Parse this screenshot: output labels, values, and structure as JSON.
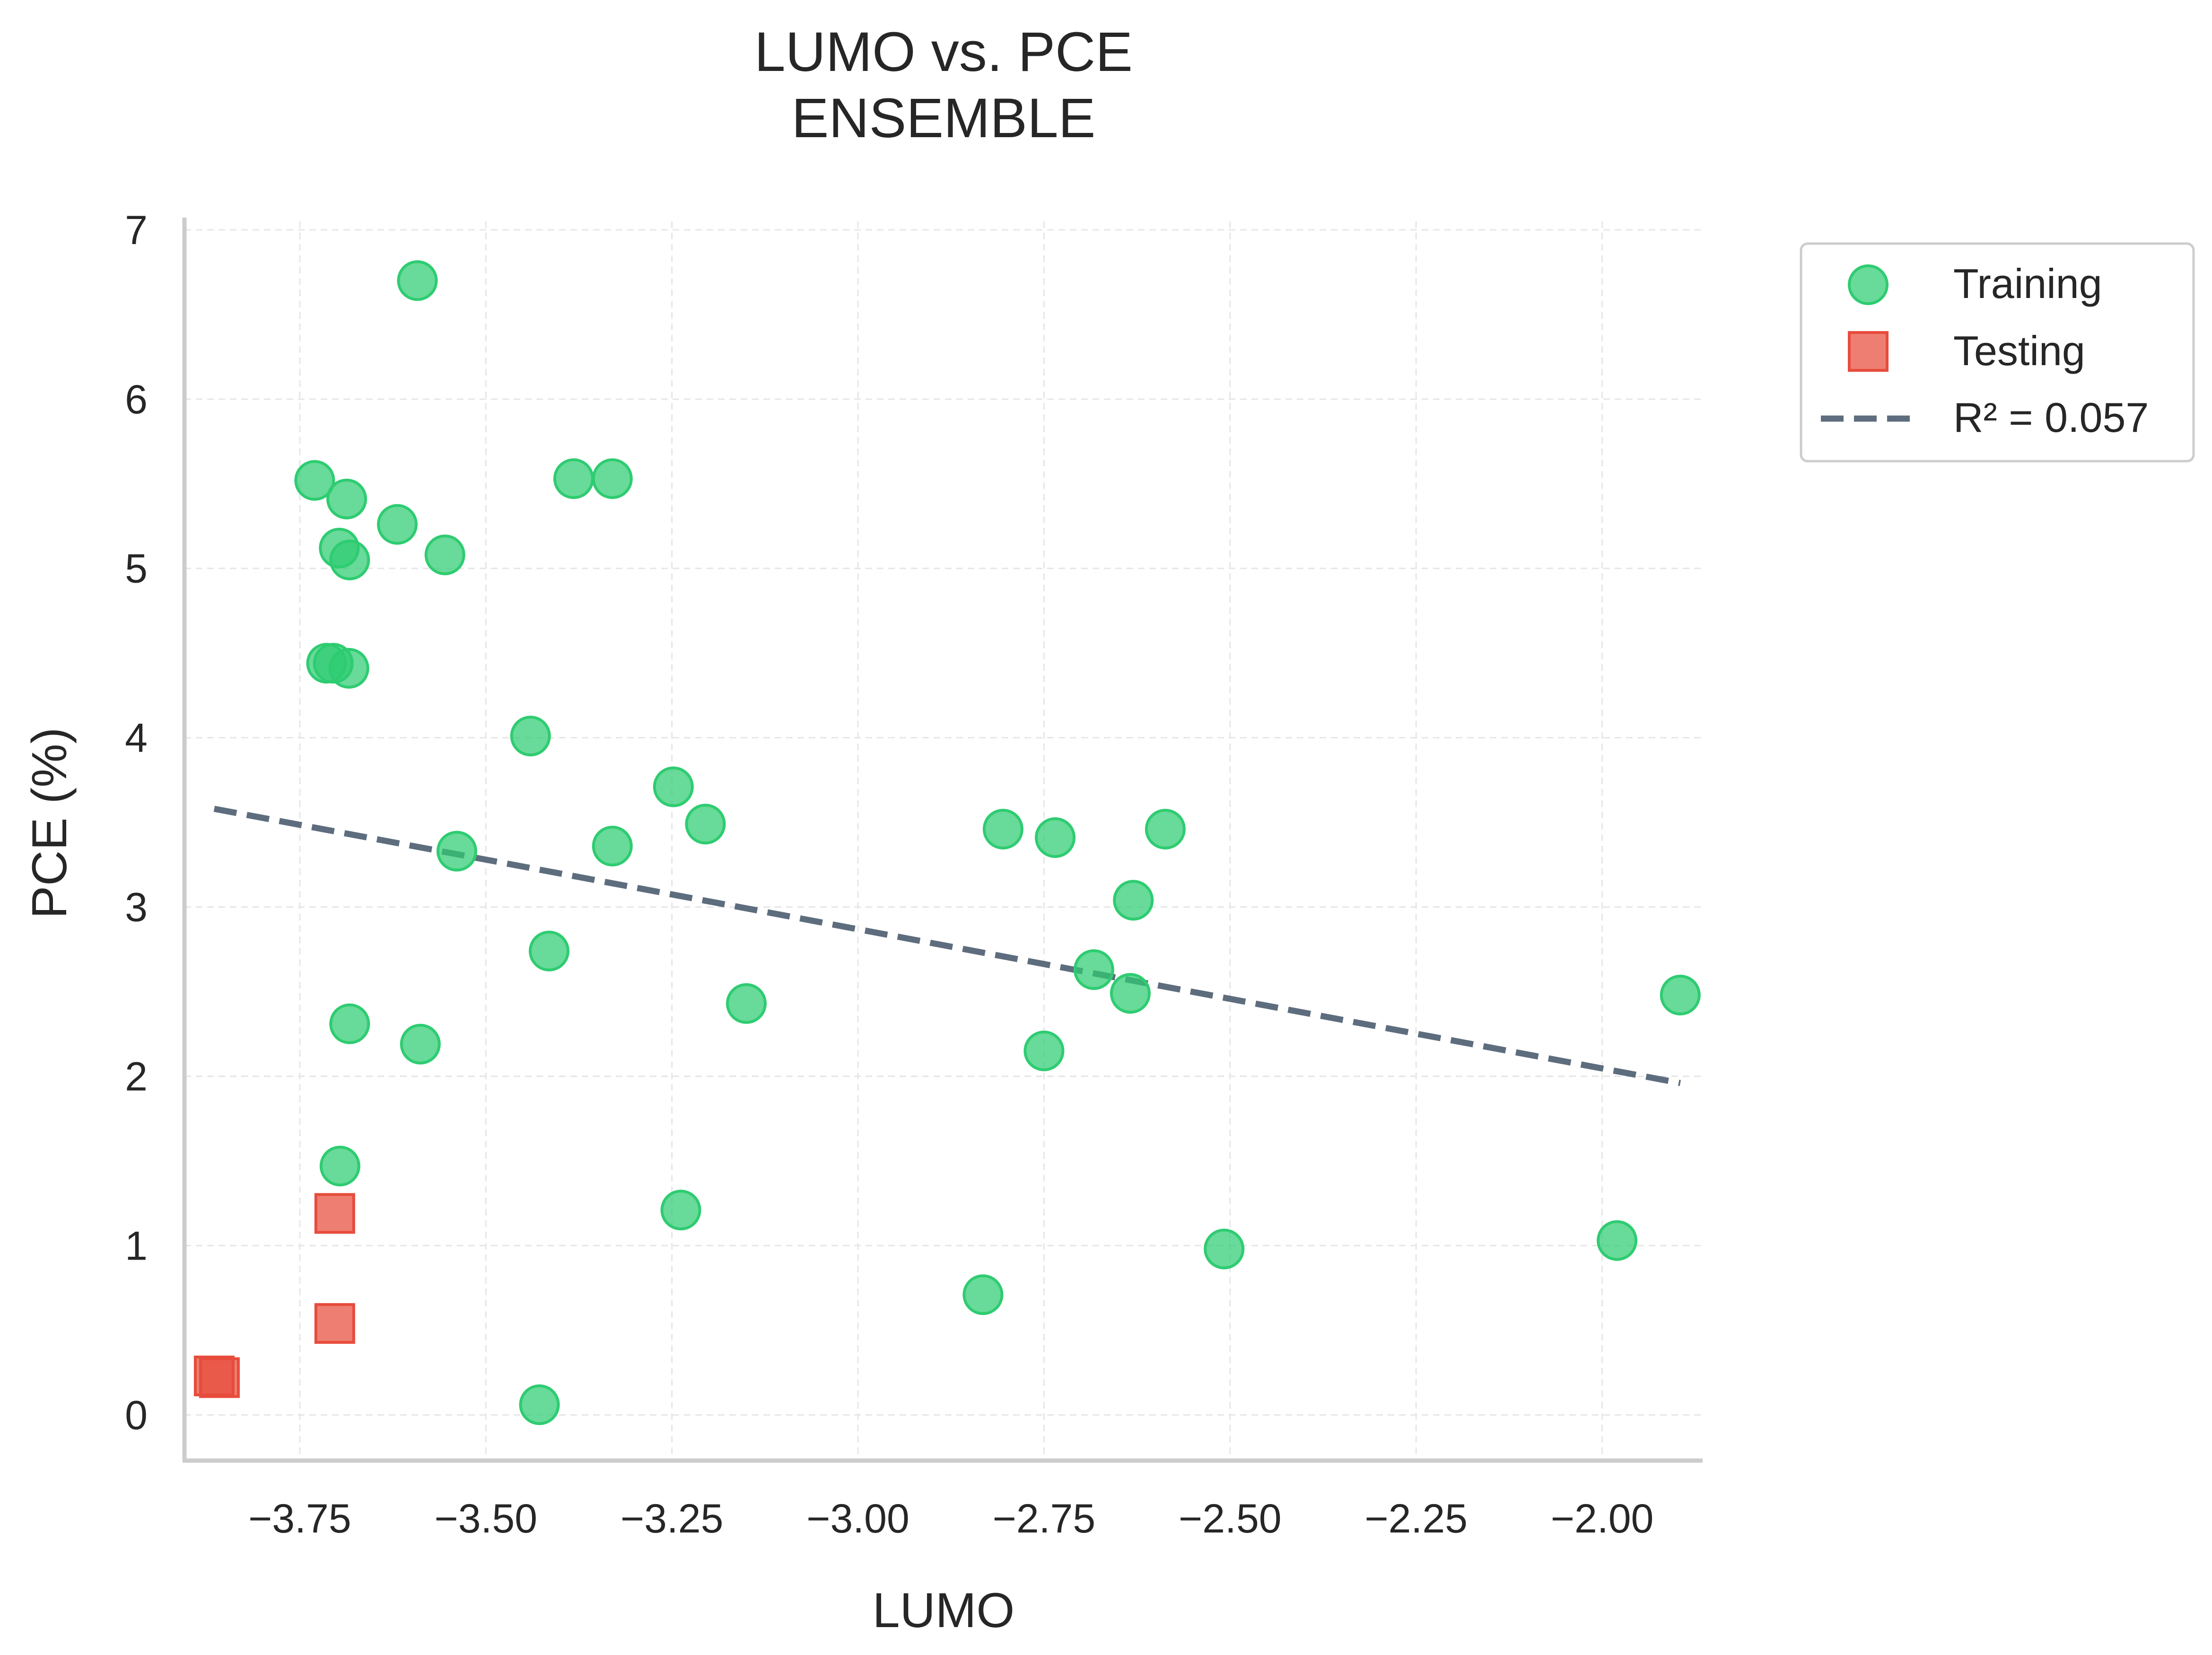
{
  "chart_data": {
    "type": "scatter",
    "title": "LUMO vs. PCE\nENSEMBLE",
    "xlabel": "LUMO",
    "ylabel": "PCE (%)",
    "xlim": [
      -3.905,
      -1.865
    ],
    "ylim": [
      -0.27,
      7.05
    ],
    "x_ticks": [
      -3.75,
      -3.5,
      -3.25,
      -3.0,
      -2.75,
      -2.5,
      -2.25,
      -2.0
    ],
    "x_tick_labels": [
      "−3.75",
      "−3.50",
      "−3.25",
      "−3.00",
      "−2.75",
      "−2.50",
      "−2.25",
      "−2.00"
    ],
    "y_ticks": [
      0,
      1,
      2,
      3,
      4,
      5,
      6,
      7
    ],
    "y_tick_labels": [
      "0",
      "1",
      "2",
      "3",
      "4",
      "5",
      "6",
      "7"
    ],
    "grid": true,
    "legend_position": "outside-top-right",
    "series": [
      {
        "name": "Training",
        "marker": "circle",
        "color": "#2ecc71",
        "points": [
          [
            -3.592,
            6.7
          ],
          [
            -3.73,
            5.52
          ],
          [
            -3.687,
            5.41
          ],
          [
            -3.619,
            5.26
          ],
          [
            -3.697,
            5.12
          ],
          [
            -3.683,
            5.05
          ],
          [
            -3.555,
            5.08
          ],
          [
            -3.382,
            5.53
          ],
          [
            -3.33,
            5.53
          ],
          [
            -3.714,
            4.44
          ],
          [
            -3.705,
            4.44
          ],
          [
            -3.684,
            4.41
          ],
          [
            -3.44,
            4.01
          ],
          [
            -3.248,
            3.71
          ],
          [
            -3.205,
            3.49
          ],
          [
            -3.539,
            3.33
          ],
          [
            -3.33,
            3.36
          ],
          [
            -3.415,
            2.74
          ],
          [
            -3.15,
            2.43
          ],
          [
            -3.683,
            2.31
          ],
          [
            -3.588,
            2.19
          ],
          [
            -3.696,
            1.47
          ],
          [
            -3.238,
            1.21
          ],
          [
            -3.428,
            0.06
          ],
          [
            -2.805,
            3.46
          ],
          [
            -2.735,
            3.41
          ],
          [
            -2.587,
            3.46
          ],
          [
            -2.63,
            3.04
          ],
          [
            -2.683,
            2.63
          ],
          [
            -2.634,
            2.49
          ],
          [
            -2.75,
            2.15
          ],
          [
            -2.832,
            0.71
          ],
          [
            -2.508,
            0.98
          ],
          [
            -1.98,
            1.03
          ],
          [
            -1.895,
            2.48
          ]
        ]
      },
      {
        "name": "Testing",
        "marker": "square",
        "color": "#e74c3c",
        "points": [
          [
            -3.703,
            1.19
          ],
          [
            -3.703,
            0.54
          ],
          [
            -3.865,
            0.23
          ],
          [
            -3.858,
            0.22
          ]
        ]
      }
    ],
    "fit_line": {
      "name": "R² = 0.057",
      "style": "dashed",
      "color": "#5d6d7e",
      "x": [
        -3.865,
        -1.895
      ],
      "y": [
        3.58,
        1.96
      ]
    }
  }
}
